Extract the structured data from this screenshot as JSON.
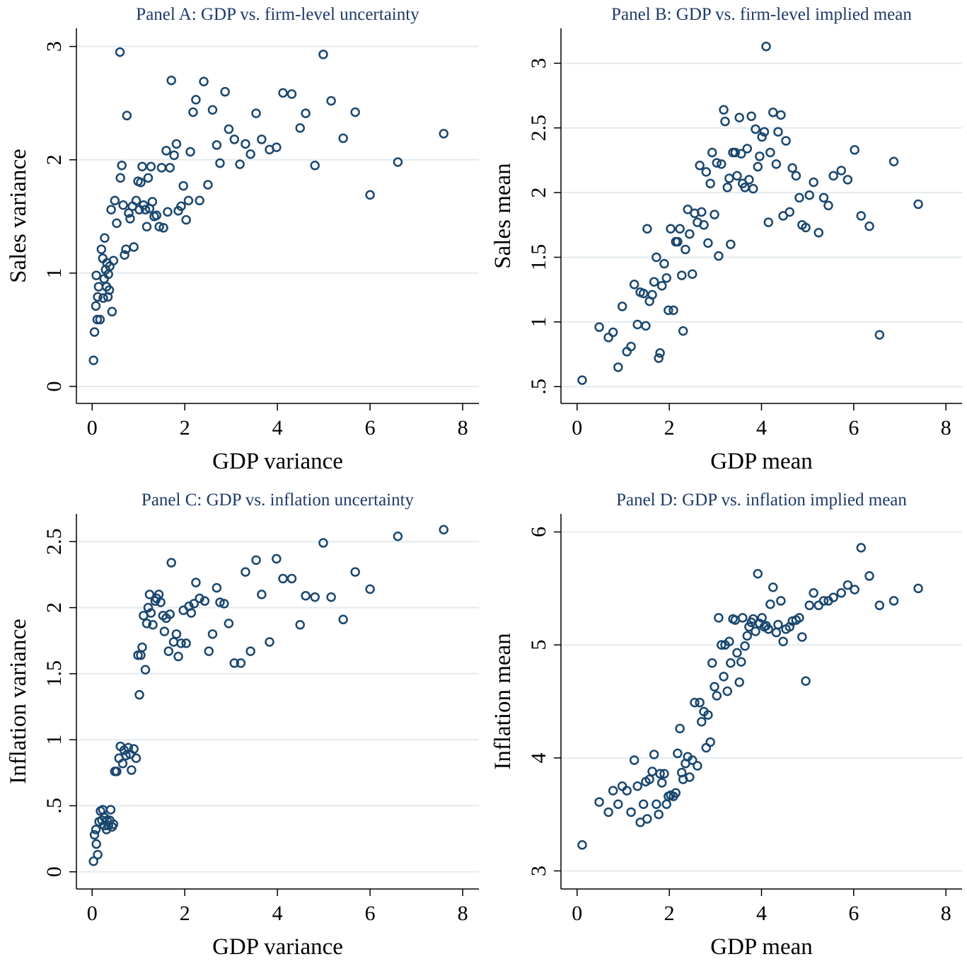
{
  "chart_data": [
    {
      "type": "scatter",
      "title": "Panel A: GDP vs. firm-level uncertainty",
      "xlabel": "GDP variance",
      "ylabel": "Sales variance",
      "color": "#1a476f",
      "grid": true,
      "xlim": [
        -0.34,
        8.35
      ],
      "ylim": [
        -0.15,
        3.16
      ],
      "xticks": [
        0,
        2,
        4,
        6,
        8
      ],
      "yticks": [
        0,
        1,
        2,
        3
      ],
      "x": [
        0.03,
        0.05,
        0.08,
        0.09,
        0.11,
        0.12,
        0.14,
        0.17,
        0.2,
        0.23,
        0.24,
        0.26,
        0.27,
        0.29,
        0.31,
        0.32,
        0.34,
        0.35,
        0.37,
        0.38,
        0.41,
        0.43,
        0.46,
        0.49,
        0.53,
        0.6,
        0.61,
        0.64,
        0.67,
        0.7,
        0.73,
        0.75,
        0.79,
        0.82,
        0.87,
        0.9,
        0.95,
        0.99,
        1.02,
        1.05,
        1.08,
        1.11,
        1.15,
        1.18,
        1.21,
        1.24,
        1.27,
        1.3,
        1.34,
        1.39,
        1.45,
        1.5,
        1.54,
        1.6,
        1.63,
        1.68,
        1.71,
        1.77,
        1.82,
        1.86,
        1.92,
        1.97,
        2.03,
        2.08,
        2.12,
        2.18,
        2.24,
        2.32,
        2.41,
        2.5,
        2.6,
        2.69,
        2.76,
        2.87,
        2.95,
        3.07,
        3.19,
        3.31,
        3.42,
        3.54,
        3.66,
        3.83,
        3.98,
        4.12,
        4.31,
        4.49,
        4.61,
        4.81,
        4.99,
        5.16,
        5.42,
        5.68,
        6.0,
        6.6,
        7.59
      ],
      "y": [
        0.23,
        0.48,
        0.71,
        0.98,
        0.59,
        0.79,
        0.88,
        0.59,
        1.21,
        1.13,
        0.78,
        0.95,
        1.31,
        1.03,
        0.88,
        1.09,
        0.79,
        0.99,
        0.85,
        1.06,
        1.56,
        0.66,
        1.11,
        1.64,
        1.44,
        2.95,
        1.84,
        1.95,
        1.6,
        1.16,
        1.21,
        2.39,
        1.53,
        1.48,
        1.59,
        1.23,
        1.64,
        1.81,
        1.56,
        1.8,
        1.94,
        1.6,
        1.56,
        1.41,
        1.84,
        1.57,
        1.94,
        1.63,
        1.5,
        1.51,
        1.41,
        1.93,
        1.4,
        2.08,
        1.54,
        1.93,
        2.7,
        2.04,
        2.14,
        1.55,
        1.59,
        1.77,
        1.47,
        1.64,
        2.07,
        2.42,
        2.53,
        1.64,
        2.69,
        1.78,
        2.44,
        2.13,
        1.97,
        2.6,
        2.27,
        2.18,
        1.96,
        2.14,
        2.05,
        2.41,
        2.18,
        2.09,
        2.11,
        2.59,
        2.58,
        2.28,
        2.41,
        1.95,
        2.93,
        2.52,
        2.19,
        2.42,
        1.69,
        1.98,
        2.23
      ]
    },
    {
      "type": "scatter",
      "title": "Panel B: GDP vs. firm-level implied mean",
      "xlabel": "GDP mean",
      "ylabel": "Sales mean",
      "color": "#1a476f",
      "grid": true,
      "xlim": [
        -0.35,
        8.35
      ],
      "ylim": [
        0.37,
        3.27
      ],
      "xticks": [
        0,
        2,
        4,
        6,
        8
      ],
      "yticks": [
        {
          "value": 0.5,
          "label": ".5"
        },
        1,
        1.5,
        2,
        2.5,
        3
      ],
      "x": [
        0.11,
        0.48,
        0.68,
        0.78,
        0.89,
        0.98,
        1.08,
        1.17,
        1.24,
        1.31,
        1.37,
        1.44,
        1.49,
        1.52,
        1.57,
        1.63,
        1.67,
        1.72,
        1.77,
        1.8,
        1.84,
        1.89,
        1.94,
        1.98,
        2.03,
        2.09,
        2.14,
        2.18,
        2.23,
        2.27,
        2.3,
        2.35,
        2.4,
        2.44,
        2.5,
        2.55,
        2.61,
        2.66,
        2.7,
        2.75,
        2.8,
        2.84,
        2.89,
        2.93,
        2.98,
        3.03,
        3.07,
        3.13,
        3.18,
        3.21,
        3.26,
        3.3,
        3.33,
        3.38,
        3.43,
        3.47,
        3.52,
        3.56,
        3.59,
        3.64,
        3.69,
        3.73,
        3.78,
        3.82,
        3.87,
        3.92,
        3.96,
        4.01,
        4.06,
        4.1,
        4.15,
        4.19,
        4.25,
        4.32,
        4.36,
        4.42,
        4.47,
        4.53,
        4.61,
        4.67,
        4.75,
        4.82,
        4.88,
        4.96,
        5.04,
        5.13,
        5.24,
        5.35,
        5.45,
        5.56,
        5.73,
        5.87,
        6.02,
        6.16,
        6.34,
        6.56,
        6.87,
        7.4
      ],
      "y": [
        0.55,
        0.96,
        0.88,
        0.92,
        0.65,
        1.12,
        0.77,
        0.81,
        1.29,
        0.98,
        1.23,
        1.22,
        0.97,
        1.72,
        1.16,
        1.21,
        1.31,
        1.5,
        0.72,
        0.76,
        1.28,
        1.45,
        1.34,
        1.09,
        1.72,
        1.09,
        1.62,
        1.62,
        1.72,
        1.36,
        0.93,
        1.56,
        1.87,
        1.68,
        1.37,
        1.84,
        1.77,
        2.21,
        1.85,
        1.75,
        2.16,
        1.61,
        2.07,
        2.31,
        1.83,
        2.23,
        1.51,
        2.22,
        2.64,
        2.55,
        2.04,
        2.11,
        1.6,
        2.31,
        2.31,
        2.13,
        2.58,
        2.3,
        2.07,
        2.04,
        2.34,
        2.1,
        2.59,
        2.03,
        2.49,
        2.2,
        2.28,
        2.43,
        2.47,
        3.13,
        1.77,
        2.31,
        2.62,
        2.22,
        2.47,
        2.6,
        1.82,
        2.4,
        1.85,
        2.19,
        2.13,
        1.96,
        1.75,
        1.73,
        1.98,
        2.08,
        1.69,
        1.96,
        1.9,
        2.13,
        2.17,
        2.1,
        2.33,
        1.82,
        1.74,
        0.9,
        2.24,
        1.91
      ]
    },
    {
      "type": "scatter",
      "title": "Panel C: GDP vs. inflation uncertainty",
      "xlabel": "GDP variance",
      "ylabel": "Inflation variance",
      "color": "#1a476f",
      "grid": true,
      "xlim": [
        -0.34,
        8.35
      ],
      "ylim": [
        -0.13,
        2.71
      ],
      "xticks": [
        0,
        2,
        4,
        6,
        8
      ],
      "yticks": [
        0,
        {
          "value": 0.5,
          "label": ".5"
        },
        1,
        1.5,
        2,
        2.5
      ],
      "x": [
        0.03,
        0.05,
        0.08,
        0.09,
        0.12,
        0.15,
        0.18,
        0.21,
        0.23,
        0.26,
        0.27,
        0.31,
        0.32,
        0.35,
        0.38,
        0.4,
        0.43,
        0.46,
        0.49,
        0.53,
        0.58,
        0.61,
        0.66,
        0.69,
        0.73,
        0.78,
        0.82,
        0.85,
        0.9,
        0.95,
        0.99,
        1.02,
        1.05,
        1.08,
        1.11,
        1.15,
        1.18,
        1.21,
        1.24,
        1.27,
        1.31,
        1.36,
        1.39,
        1.44,
        1.48,
        1.53,
        1.56,
        1.6,
        1.65,
        1.68,
        1.71,
        1.76,
        1.82,
        1.86,
        1.92,
        1.97,
        2.03,
        2.09,
        2.14,
        2.2,
        2.24,
        2.32,
        2.43,
        2.52,
        2.6,
        2.69,
        2.76,
        2.85,
        2.95,
        3.07,
        3.21,
        3.31,
        3.42,
        3.54,
        3.66,
        3.83,
        3.98,
        4.12,
        4.31,
        4.49,
        4.61,
        4.81,
        4.99,
        5.16,
        5.42,
        5.68,
        6.0,
        6.6,
        7.59
      ],
      "y": [
        0.08,
        0.28,
        0.32,
        0.21,
        0.13,
        0.38,
        0.46,
        0.39,
        0.47,
        0.35,
        0.41,
        0.32,
        0.39,
        0.35,
        0.39,
        0.47,
        0.34,
        0.36,
        0.76,
        0.76,
        0.86,
        0.95,
        0.82,
        0.92,
        0.88,
        0.94,
        0.89,
        0.77,
        0.93,
        0.86,
        1.64,
        1.34,
        1.64,
        1.7,
        1.94,
        1.53,
        1.88,
        2.0,
        2.1,
        1.96,
        1.87,
        2.05,
        2.07,
        2.1,
        2.04,
        1.94,
        1.82,
        1.92,
        1.67,
        1.95,
        2.34,
        1.74,
        1.8,
        1.63,
        1.73,
        1.98,
        1.73,
        2.01,
        1.96,
        2.03,
        2.19,
        2.07,
        2.05,
        1.67,
        1.8,
        2.15,
        2.04,
        2.03,
        1.88,
        1.58,
        1.58,
        2.27,
        1.67,
        2.36,
        2.1,
        1.74,
        2.37,
        2.22,
        2.22,
        1.87,
        2.09,
        2.08,
        2.49,
        2.08,
        1.91,
        2.27,
        2.14,
        2.54,
        2.59
      ]
    },
    {
      "type": "scatter",
      "title": "Panel D: GDP vs. inflation implied mean",
      "xlabel": "GDP mean",
      "ylabel": "Inflation mean",
      "color": "#1a476f",
      "grid": true,
      "xlim": [
        -0.35,
        8.35
      ],
      "ylim": [
        2.84,
        6.16
      ],
      "xticks": [
        0,
        2,
        4,
        6,
        8
      ],
      "yticks": [
        3,
        4,
        5,
        6
      ],
      "x": [
        0.11,
        0.48,
        0.68,
        0.78,
        0.89,
        0.98,
        1.08,
        1.17,
        1.24,
        1.31,
        1.37,
        1.44,
        1.49,
        1.52,
        1.57,
        1.63,
        1.67,
        1.72,
        1.77,
        1.8,
        1.84,
        1.89,
        1.94,
        1.98,
        2.03,
        2.09,
        2.14,
        2.18,
        2.23,
        2.27,
        2.3,
        2.35,
        2.4,
        2.44,
        2.5,
        2.55,
        2.61,
        2.66,
        2.7,
        2.75,
        2.8,
        2.84,
        2.89,
        2.93,
        2.98,
        3.03,
        3.07,
        3.13,
        3.18,
        3.21,
        3.26,
        3.3,
        3.33,
        3.38,
        3.43,
        3.47,
        3.52,
        3.56,
        3.59,
        3.64,
        3.69,
        3.73,
        3.78,
        3.82,
        3.87,
        3.92,
        3.96,
        4.01,
        4.06,
        4.1,
        4.15,
        4.19,
        4.25,
        4.32,
        4.36,
        4.42,
        4.47,
        4.53,
        4.61,
        4.67,
        4.75,
        4.82,
        4.88,
        4.96,
        5.04,
        5.13,
        5.24,
        5.35,
        5.45,
        5.56,
        5.73,
        5.87,
        6.02,
        6.16,
        6.34,
        6.56,
        6.87,
        7.4
      ],
      "y": [
        3.23,
        3.61,
        3.52,
        3.71,
        3.59,
        3.75,
        3.71,
        3.52,
        3.98,
        3.75,
        3.43,
        3.59,
        3.79,
        3.46,
        3.81,
        3.88,
        4.03,
        3.59,
        3.5,
        3.86,
        3.78,
        3.86,
        3.59,
        3.66,
        3.67,
        3.66,
        3.69,
        4.04,
        4.26,
        3.87,
        3.81,
        3.95,
        4.01,
        3.83,
        3.98,
        4.49,
        3.93,
        4.49,
        4.32,
        4.41,
        4.09,
        4.38,
        4.14,
        4.84,
        4.63,
        4.55,
        5.24,
        5.0,
        4.72,
        5.0,
        4.59,
        5.03,
        4.84,
        5.23,
        5.22,
        4.93,
        4.67,
        4.85,
        5.24,
        4.99,
        5.08,
        5.16,
        5.2,
        5.23,
        5.12,
        5.63,
        5.19,
        5.24,
        5.16,
        5.17,
        5.14,
        5.36,
        5.51,
        5.11,
        5.18,
        5.39,
        5.03,
        5.14,
        5.16,
        5.21,
        5.22,
        5.24,
        5.07,
        4.68,
        5.35,
        5.46,
        5.35,
        5.39,
        5.39,
        5.42,
        5.46,
        5.53,
        5.49,
        5.86,
        5.61,
        5.35,
        5.39,
        5.5
      ]
    }
  ]
}
